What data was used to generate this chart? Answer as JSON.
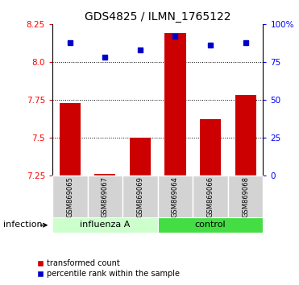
{
  "title": "GDS4825 / ILMN_1765122",
  "categories": [
    "GSM869065",
    "GSM869067",
    "GSM869069",
    "GSM869064",
    "GSM869066",
    "GSM869068"
  ],
  "bar_values": [
    7.73,
    7.26,
    7.5,
    8.19,
    7.62,
    7.78
  ],
  "dot_values": [
    88,
    78,
    83,
    92,
    86,
    88
  ],
  "bar_color": "#cc0000",
  "dot_color": "#0000cc",
  "ylim_left": [
    7.25,
    8.25
  ],
  "ylim_right": [
    0,
    100
  ],
  "yticks_left": [
    7.25,
    7.5,
    7.75,
    8.0,
    8.25
  ],
  "yticks_right": [
    0,
    25,
    50,
    75,
    100
  ],
  "ylabel_right_labels": [
    "0",
    "25",
    "50",
    "75",
    "100%"
  ],
  "hlines": [
    8.0,
    7.75,
    7.5
  ],
  "xlabel_area_label": "infection",
  "legend_bar_label": "transformed count",
  "legend_dot_label": "percentile rank within the sample",
  "bar_width": 0.6,
  "title_fontsize": 10,
  "tick_fontsize": 7.5,
  "cat_fontsize": 6,
  "group_fontsize": 8,
  "groups_info": [
    {
      "label": "influenza A",
      "start": 0,
      "end": 2,
      "color": "#ccffcc"
    },
    {
      "label": "control",
      "start": 3,
      "end": 5,
      "color": "#44dd44"
    }
  ]
}
